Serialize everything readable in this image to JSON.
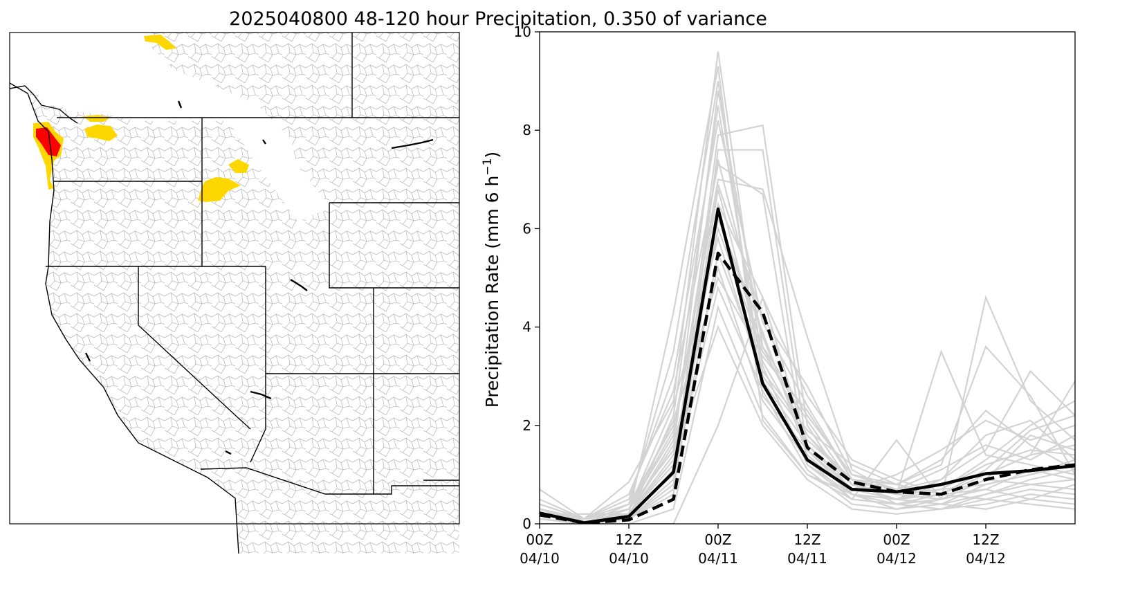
{
  "title": "2025040800 48-120 hour Precipitation, 0.350 of variance",
  "map": {
    "highlight_colors": {
      "moderate": "#FFD700",
      "high": "#FF0000"
    },
    "border_color": "#000000",
    "basin_color": "#BBBBBB"
  },
  "chart_data": {
    "type": "line",
    "ylabel": "Precipitation Rate (mm 6 h",
    "ylabel_exponent": "−1",
    "ylabel_suffix": ")",
    "ylim": [
      0,
      10
    ],
    "yticks": [
      0,
      2,
      4,
      6,
      8,
      10
    ],
    "x_hours": [
      0,
      6,
      12,
      18,
      24,
      30,
      36,
      42,
      48,
      54,
      60,
      66,
      72
    ],
    "xlim_hours": [
      0,
      72
    ],
    "xticks": [
      {
        "hour": 0,
        "line1": "00Z",
        "line2": "04/10"
      },
      {
        "hour": 12,
        "line1": "12Z",
        "line2": "04/10"
      },
      {
        "hour": 24,
        "line1": "00Z",
        "line2": "04/11"
      },
      {
        "hour": 36,
        "line1": "12Z",
        "line2": "04/11"
      },
      {
        "hour": 48,
        "line1": "00Z",
        "line2": "04/12"
      },
      {
        "hour": 60,
        "line1": "12Z",
        "line2": "04/12"
      }
    ],
    "series": [
      {
        "style": "solid",
        "color": "#000000",
        "values": [
          0.22,
          0.02,
          0.15,
          1.05,
          6.4,
          2.85,
          1.3,
          0.7,
          0.65,
          0.8,
          1.02,
          1.08,
          1.18
        ]
      },
      {
        "style": "dashed",
        "color": "#000000",
        "values": [
          0.18,
          0.02,
          0.08,
          0.5,
          5.5,
          4.3,
          1.55,
          0.85,
          0.65,
          0.6,
          0.9,
          1.1,
          1.2
        ]
      }
    ],
    "ensemble": {
      "color": "#D3D3D3",
      "members": [
        [
          0.7,
          0.1,
          0.85,
          2.5,
          9.6,
          3.2,
          1.2,
          0.6,
          0.5,
          0.4,
          0.6,
          0.8,
          0.9
        ],
        [
          0.3,
          0.05,
          0.2,
          4.3,
          9.3,
          2.1,
          1.0,
          0.5,
          0.4,
          0.6,
          1.0,
          1.4,
          1.6
        ],
        [
          0.2,
          0.0,
          0.4,
          3.5,
          9.0,
          2.6,
          1.5,
          0.6,
          0.4,
          0.5,
          4.6,
          2.5,
          1.7
        ],
        [
          0.2,
          0.1,
          0.3,
          1.5,
          8.8,
          3.6,
          2.2,
          1.0,
          0.7,
          0.9,
          1.5,
          3.1,
          2.2
        ],
        [
          0.3,
          0.0,
          0.1,
          2.2,
          8.5,
          3.0,
          1.8,
          0.8,
          0.5,
          0.7,
          1.3,
          2.0,
          2.5
        ],
        [
          0.5,
          0.1,
          0.5,
          3.0,
          8.2,
          4.1,
          2.4,
          0.9,
          0.8,
          1.2,
          3.6,
          2.6,
          1.0
        ],
        [
          0.2,
          0.2,
          0.2,
          1.0,
          7.9,
          8.1,
          2.0,
          0.6,
          0.3,
          0.4,
          0.8,
          1.0,
          1.2
        ],
        [
          0.1,
          0.0,
          0.1,
          0.6,
          7.6,
          7.6,
          1.5,
          0.7,
          0.5,
          0.8,
          1.0,
          1.4,
          2.9
        ],
        [
          0.3,
          0.1,
          0.6,
          2.7,
          7.3,
          6.7,
          1.2,
          0.5,
          1.7,
          0.5,
          0.9,
          1.8,
          1.5
        ],
        [
          0.2,
          0.0,
          0.3,
          1.8,
          7.0,
          6.8,
          3.8,
          1.1,
          0.6,
          3.5,
          1.4,
          1.2,
          1.0
        ],
        [
          0.4,
          0.1,
          0.2,
          1.2,
          6.8,
          3.3,
          1.7,
          0.9,
          0.4,
          0.3,
          0.6,
          0.9,
          1.1
        ],
        [
          0.1,
          0.0,
          0.1,
          0.9,
          6.5,
          4.6,
          2.6,
          1.3,
          0.9,
          0.6,
          0.7,
          0.5,
          0.8
        ],
        [
          0.3,
          0.1,
          0.4,
          2.0,
          6.2,
          3.9,
          1.4,
          0.6,
          0.5,
          0.9,
          1.8,
          2.1,
          1.3
        ],
        [
          0.2,
          0.1,
          0.2,
          1.4,
          6.0,
          3.5,
          2.1,
          0.8,
          0.6,
          0.5,
          0.7,
          1.1,
          0.9
        ],
        [
          0.3,
          0.0,
          0.3,
          2.4,
          5.8,
          2.9,
          1.6,
          0.7,
          1.0,
          1.5,
          2.1,
          1.7,
          2.0
        ],
        [
          0.1,
          0.0,
          0.1,
          0.8,
          5.5,
          3.1,
          1.9,
          1.2,
          0.8,
          0.6,
          0.5,
          0.7,
          0.6
        ],
        [
          0.2,
          0.1,
          0.2,
          1.6,
          5.2,
          2.5,
          1.3,
          0.5,
          0.4,
          0.3,
          0.4,
          0.6,
          0.5
        ],
        [
          0.4,
          0.1,
          0.3,
          2.1,
          5.0,
          3.4,
          2.3,
          0.9,
          0.7,
          1.1,
          1.6,
          1.3,
          1.8
        ],
        [
          0.2,
          0.0,
          0.1,
          1.1,
          4.8,
          2.7,
          1.1,
          0.4,
          0.3,
          0.5,
          0.9,
          0.8,
          0.7
        ],
        [
          0.1,
          0.0,
          0.0,
          0.3,
          4.4,
          2.2,
          1.0,
          0.6,
          0.5,
          0.4,
          0.3,
          0.5,
          0.4
        ],
        [
          0.3,
          0.1,
          0.2,
          1.3,
          4.0,
          2.0,
          0.9,
          0.3,
          0.2,
          0.3,
          0.5,
          0.4,
          0.3
        ],
        [
          0.0,
          0.0,
          0.0,
          0.0,
          2.0,
          4.6,
          1.6,
          0.8,
          0.6,
          0.7,
          1.2,
          1.5,
          1.4
        ],
        [
          0.2,
          0.1,
          0.2,
          1.7,
          7.4,
          3.8,
          1.6,
          0.7,
          0.5,
          0.6,
          1.1,
          1.9,
          2.2
        ],
        [
          0.3,
          0.1,
          0.3,
          1.9,
          6.9,
          4.2,
          2.8,
          1.0,
          0.8,
          1.3,
          2.3,
          1.6,
          1.1
        ],
        [
          0.1,
          0.0,
          0.1,
          0.7,
          6.3,
          3.6,
          1.8,
          0.9,
          0.6,
          0.7,
          0.8,
          1.0,
          1.3
        ]
      ]
    }
  }
}
